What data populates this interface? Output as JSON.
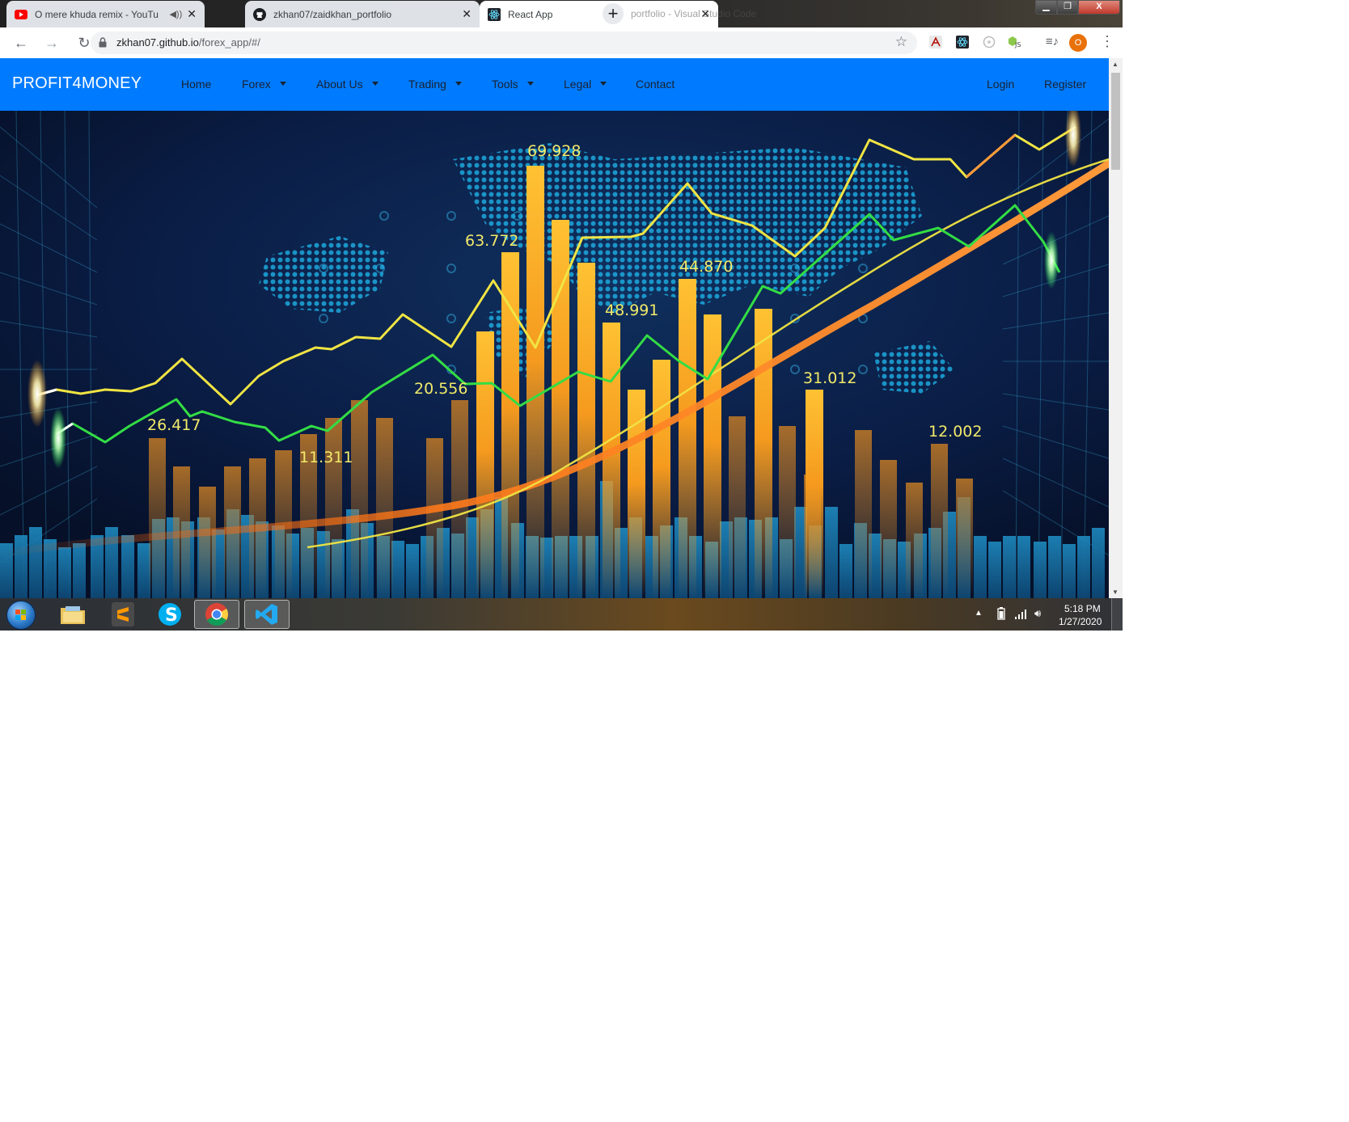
{
  "browser": {
    "tabs": [
      {
        "title": "O mere khuda remix - YouTu",
        "icon": "youtube-icon",
        "audible": true,
        "active": false
      },
      {
        "title": "zkhan07/zaidkhan_portfolio",
        "icon": "github-icon",
        "audible": false,
        "active": false
      },
      {
        "title": "React App",
        "icon": "react-icon",
        "audible": false,
        "active": true
      }
    ],
    "background_window_title": "portfolio - Visual Studio Code",
    "close_glyph": "✕",
    "new_tab_glyph": "+",
    "url_host": "zkhan07.github.io",
    "url_path": "/forex_app/#/",
    "profile_initial": "O",
    "extensions": [
      "acrobat-icon",
      "react-devtools-icon",
      "lighthouse-icon",
      "nodejs-icon",
      "media-queue-icon"
    ]
  },
  "navbar": {
    "brand": "PROFIT4MONEY",
    "links": [
      {
        "label": "Home",
        "dropdown": false
      },
      {
        "label": "Forex",
        "dropdown": true
      },
      {
        "label": "About Us",
        "dropdown": true
      },
      {
        "label": "Trading",
        "dropdown": true
      },
      {
        "label": "Tools",
        "dropdown": true
      },
      {
        "label": "Legal",
        "dropdown": true
      },
      {
        "label": "Contact",
        "dropdown": false
      }
    ],
    "right_links": [
      {
        "label": "Login"
      },
      {
        "label": "Register"
      }
    ],
    "color": "#007bff"
  },
  "hero": {
    "image_labels": [
      "69.928",
      "63.772",
      "44.870",
      "48.991",
      "20.556",
      "26.417",
      "11.311",
      "31.012",
      "12.002"
    ],
    "colors": {
      "bg": "#0a1838",
      "bars": "#f5a623",
      "line_yellow": "#f0e443",
      "line_green": "#33dd44",
      "glow_orange": "#ff7a1a"
    }
  },
  "taskbar": {
    "apps": [
      {
        "name": "file-explorer-icon",
        "open": false
      },
      {
        "name": "sublime-text-icon",
        "open": false
      },
      {
        "name": "skype-icon",
        "open": false
      },
      {
        "name": "chrome-icon",
        "open": true
      },
      {
        "name": "vscode-icon",
        "open": true
      }
    ],
    "time": "5:18 PM",
    "date": "1/27/2020"
  }
}
